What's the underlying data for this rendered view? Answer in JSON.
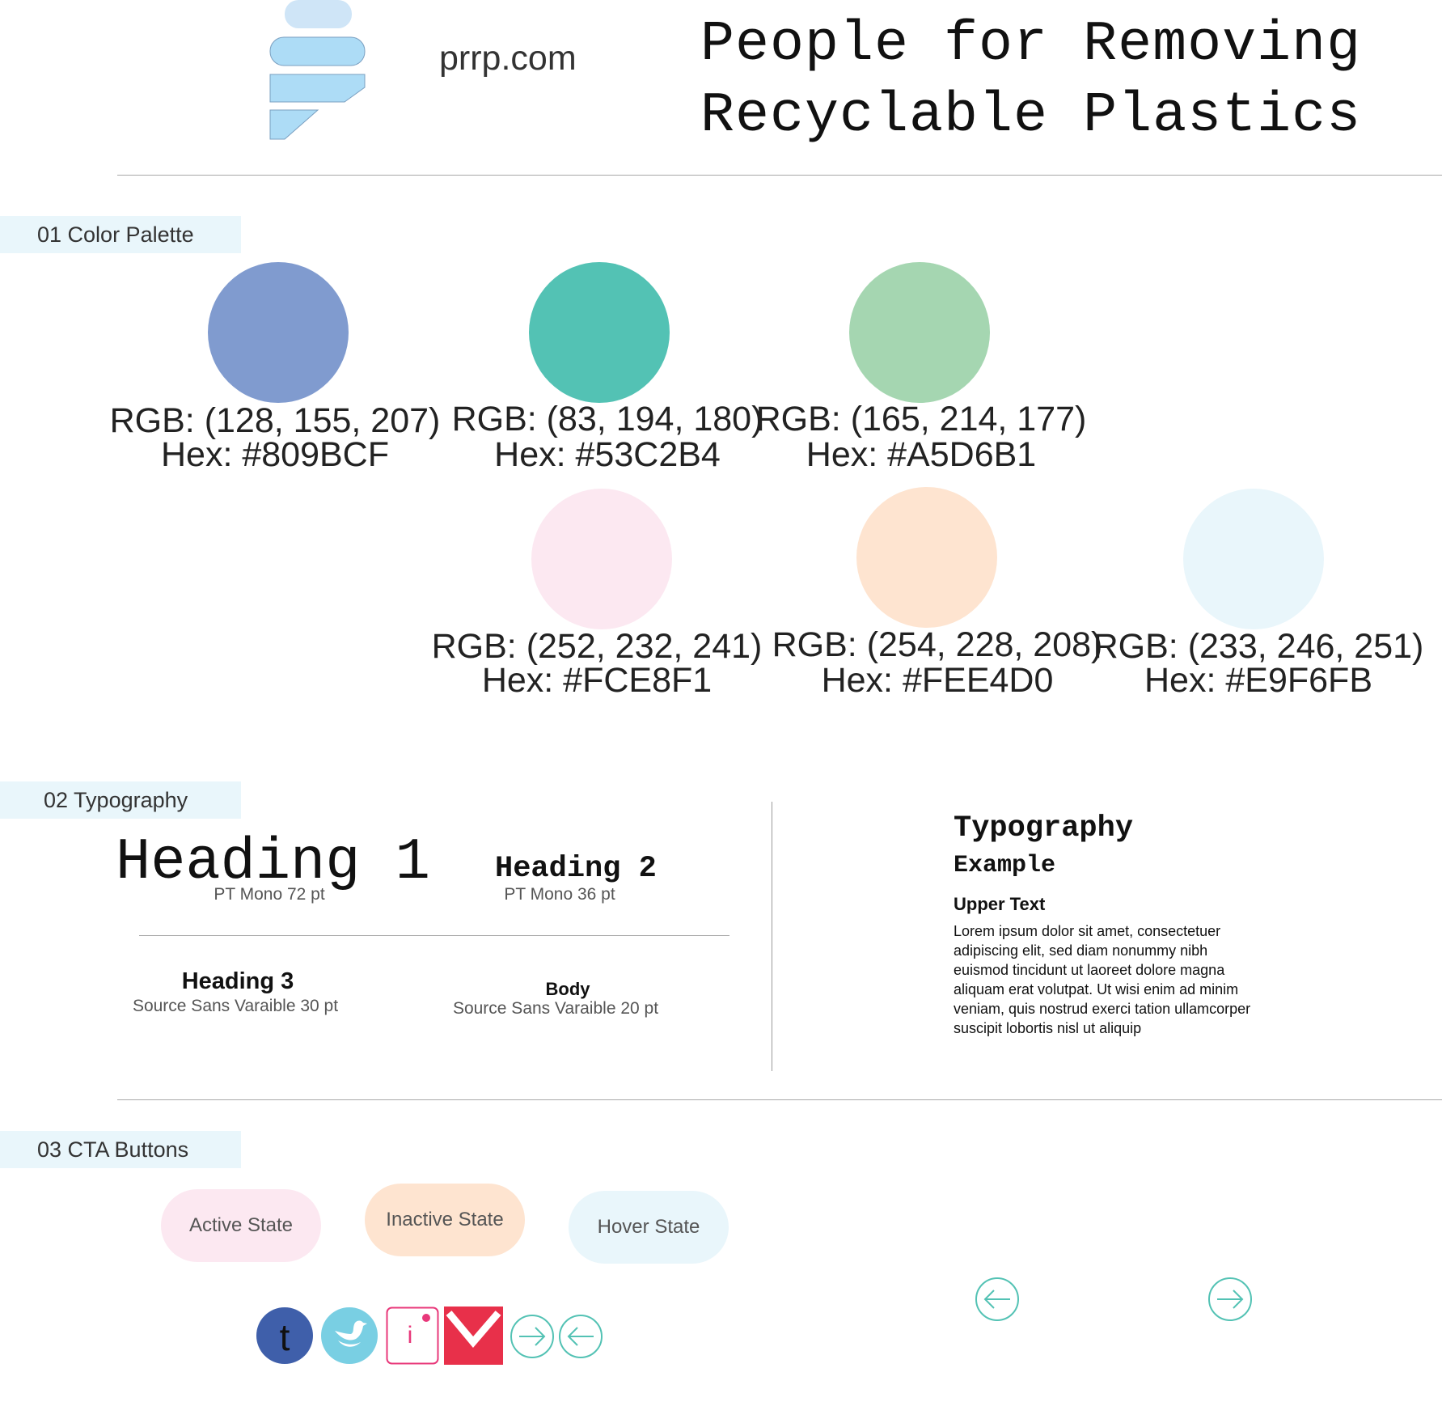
{
  "header": {
    "site_url": "prrp.com",
    "title_line1": "People for Removing",
    "title_line2": "Recyclable Plastics"
  },
  "sections": {
    "palette_label": "01 Color Palette",
    "typography_label": "02 Typography",
    "cta_label": "03 CTA Buttons"
  },
  "palette": [
    {
      "rgb": "RGB: (128, 155, 207)",
      "hex_label": "Hex: #809BCF",
      "color": "#809BCF"
    },
    {
      "rgb": "RGB: (83, 194, 180)",
      "hex_label": "Hex: #53C2B4",
      "color": "#53C2B4"
    },
    {
      "rgb": "RGB: (165, 214, 177)",
      "hex_label": "Hex: #A5D6B1",
      "color": "#A5D6B1"
    },
    {
      "rgb": "RGB: (252, 232, 241)",
      "hex_label": "Hex: #FCE8F1",
      "color": "#FCE8F1"
    },
    {
      "rgb": "RGB: (254, 228, 208)",
      "hex_label": "Hex: #FEE4D0",
      "color": "#FEE4D0"
    },
    {
      "rgb": "RGB: (233, 246, 251)",
      "hex_label": "Hex: #E9F6FB",
      "color": "#E9F6FB"
    }
  ],
  "typography": {
    "h1": {
      "sample": "Heading 1",
      "caption": "PT Mono 72 pt"
    },
    "h2": {
      "sample": "Heading 2",
      "caption": "PT Mono 36 pt"
    },
    "h3": {
      "sample": "Heading 3",
      "caption": "Source Sans Varaible 30 pt"
    },
    "body": {
      "sample": "Body",
      "caption": "Source Sans Varaible 20 pt"
    },
    "example": {
      "title": "Typography",
      "subtitle": "Example",
      "upper_text": "Upper Text",
      "body_text": "Lorem ipsum dolor sit amet, consectetuer adipiscing elit, sed diam nonummy nibh euismod tincidunt ut laoreet dolore magna aliquam erat volutpat. Ut wisi enim ad minim veniam, quis nostrud exerci tation ullamcorper suscipit lobortis nisl ut aliquip"
    }
  },
  "cta": {
    "active": {
      "label": "Active State",
      "color": "#FCE8F1"
    },
    "inactive": {
      "label": "Inactive State",
      "color": "#FEE4D0"
    },
    "hover": {
      "label": "Hover State",
      "color": "#E9F6FB"
    }
  },
  "social": {
    "tumblr_glyph": "t",
    "instagram_glyph": "i"
  },
  "colors": {
    "accent": "#53C2B4",
    "tumblr": "#3F5FAA",
    "twitter": "#79CFE3",
    "instagram": "#E8387A",
    "mail": "#E8304A"
  }
}
